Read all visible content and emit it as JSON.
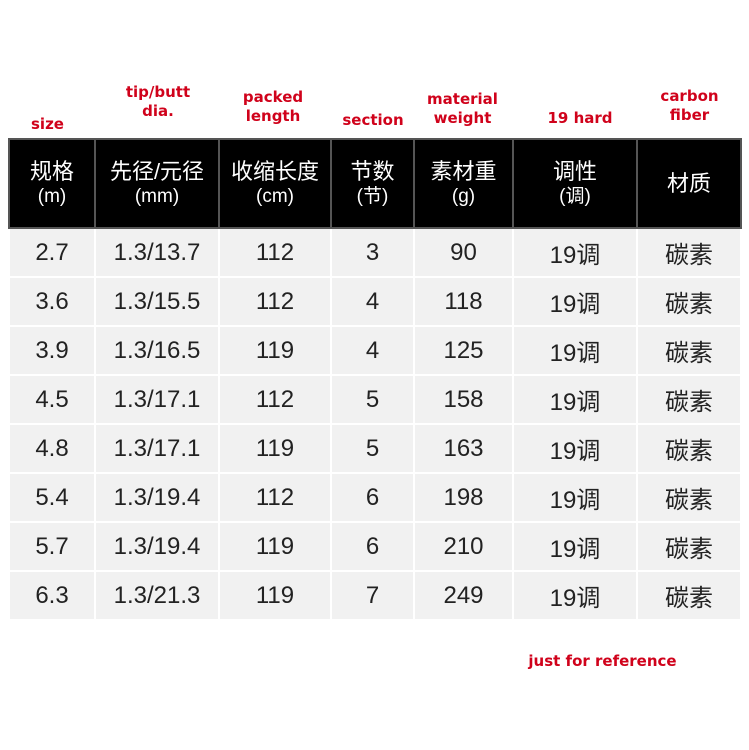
{
  "english_labels": [
    "size",
    "tip/butt dia.",
    "packed length",
    "section",
    "material weight",
    "19 hard",
    "carbon fiber"
  ],
  "headers": [
    {
      "title": "规格",
      "unit": "(m)"
    },
    {
      "title": "先径/元径",
      "unit": "(mm)"
    },
    {
      "title": "收缩长度",
      "unit": "(cm)"
    },
    {
      "title": "节数",
      "unit": "(节)"
    },
    {
      "title": "素材重",
      "unit": "(g)"
    },
    {
      "title": "调性",
      "unit": "(调)"
    },
    {
      "title": "材质",
      "unit": ""
    }
  ],
  "rows": [
    [
      "2.7",
      "1.3/13.7",
      "112",
      "3",
      "90",
      "19调",
      "碳素"
    ],
    [
      "3.6",
      "1.3/15.5",
      "112",
      "4",
      "118",
      "19调",
      "碳素"
    ],
    [
      "3.9",
      "1.3/16.5",
      "119",
      "4",
      "125",
      "19调",
      "碳素"
    ],
    [
      "4.5",
      "1.3/17.1",
      "112",
      "5",
      "158",
      "19调",
      "碳素"
    ],
    [
      "4.8",
      "1.3/17.1",
      "119",
      "5",
      "163",
      "19调",
      "碳素"
    ],
    [
      "5.4",
      "1.3/19.4",
      "112",
      "6",
      "198",
      "19调",
      "碳素"
    ],
    [
      "5.7",
      "1.3/19.4",
      "119",
      "6",
      "210",
      "19调",
      "碳素"
    ],
    [
      "6.3",
      "1.3/21.3",
      "119",
      "7",
      "249",
      "19调",
      "碳素"
    ]
  ],
  "footnote": "just for reference"
}
